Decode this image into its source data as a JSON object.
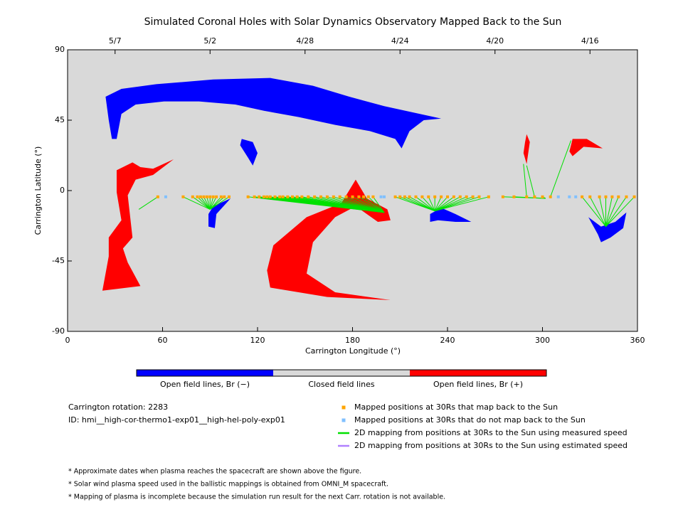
{
  "chart_data": {
    "type": "scatter",
    "title": "Simulated Coronal Holes with Solar Dynamics Observatory Mapped Back to the Sun",
    "x_label": "Carrington Longitude (°)",
    "y_label": "Carrington Latitude (°)",
    "xlim": [
      0,
      360
    ],
    "ylim": [
      -90,
      90
    ],
    "xticks": [
      0,
      60,
      120,
      180,
      240,
      300,
      360
    ],
    "yticks": [
      -90,
      -45,
      0,
      45,
      90
    ],
    "top_ticks": [
      {
        "value": 30,
        "label": "5/7"
      },
      {
        "value": 90,
        "label": "5/2"
      },
      {
        "value": 150,
        "label": "4/28"
      },
      {
        "value": 210,
        "label": "4/24"
      },
      {
        "value": 270,
        "label": "4/20"
      },
      {
        "value": 330,
        "label": "4/16"
      }
    ],
    "background": "#d9d9d9",
    "colorbar": [
      {
        "label": "Open field lines, Br (−)",
        "color": "#0000ff"
      },
      {
        "label": "Closed field lines",
        "color": "#d9d9d9"
      },
      {
        "label": "Open field lines, Br (+)",
        "color": "#ff0000"
      }
    ],
    "holes": [
      {
        "color": "#0000ff",
        "lon": [
          24,
          34,
          56,
          92,
          128,
          155,
          178,
          200,
          227,
          236,
          225,
          216,
          211,
          207,
          191,
          169,
          146,
          124,
          106,
          83,
          61,
          43,
          34,
          31,
          28,
          26
        ],
        "lat": [
          60,
          65,
          68,
          71,
          72,
          67,
          60,
          54,
          48,
          46,
          45,
          38,
          27,
          33,
          38,
          42,
          47,
          51,
          55,
          57,
          57,
          55,
          49,
          33,
          33,
          45
        ]
      },
      {
        "color": "#0000ff",
        "lon": [
          110,
          117,
          120,
          117,
          114,
          109
        ],
        "lat": [
          33,
          31,
          24,
          16,
          21,
          29
        ]
      },
      {
        "color": "#0000ff",
        "lon": [
          89,
          92,
          103,
          94,
          93,
          89
        ],
        "lat": [
          -15,
          -10,
          -5,
          -15,
          -24,
          -23
        ]
      },
      {
        "color": "#0000ff",
        "lon": [
          229,
          236,
          245,
          255,
          245,
          234,
          229
        ],
        "lat": [
          -15,
          -11,
          -15,
          -20,
          -20,
          -19,
          -20
        ]
      },
      {
        "color": "#0000ff",
        "lon": [
          329,
          337,
          346,
          353,
          351,
          343,
          337,
          335
        ],
        "lat": [
          -17,
          -23,
          -20,
          -14,
          -24,
          -30,
          -33,
          -28
        ]
      },
      {
        "color": "#ff0000",
        "lon": [
          31,
          41,
          46,
          54,
          67,
          54,
          43,
          38,
          41,
          35,
          38,
          46,
          22,
          26,
          26,
          34,
          31
        ],
        "lat": [
          13,
          18,
          15,
          14,
          20,
          10,
          7,
          -3,
          -30,
          -37,
          -46,
          -61,
          -64,
          -42,
          -30,
          -19,
          -1
        ]
      },
      {
        "color": "#ff0000",
        "lon": [
          128,
          126,
          130,
          151,
          173,
          182,
          189,
          202,
          204,
          196,
          182,
          169,
          155,
          151,
          169,
          204,
          164
        ],
        "lat": [
          -62,
          -51,
          -35,
          -17,
          -8,
          7,
          -5,
          -12,
          -19,
          -20,
          -10,
          -17,
          -33,
          -53,
          -65,
          -70,
          -68
        ]
      },
      {
        "color": "#ff0000",
        "lon": [
          290,
          292,
          290,
          288,
          289
        ],
        "lat": [
          36,
          31,
          17,
          24,
          31
        ]
      },
      {
        "color": "#ff0000",
        "lon": [
          319,
          328,
          338,
          326,
          319,
          317
        ],
        "lat": [
          33,
          33,
          27,
          28,
          22,
          25
        ]
      }
    ],
    "mapped": {
      "name": "Mapped positions at 30Rs that map back to the Sun",
      "color": "#ffa500",
      "x": [
        57,
        73,
        79,
        82,
        84,
        86,
        88,
        90,
        92,
        94,
        97,
        99,
        102,
        114,
        118,
        121,
        124,
        126,
        128,
        131,
        134,
        136,
        139,
        142,
        145,
        148,
        152,
        156,
        160,
        164,
        168,
        172,
        176,
        180,
        184,
        187,
        190,
        193,
        207,
        210,
        213,
        216,
        220,
        224,
        228,
        232,
        236,
        240,
        244,
        248,
        252,
        256,
        260,
        266,
        275,
        282,
        290,
        295,
        300,
        305,
        325,
        330,
        336,
        340,
        344,
        348,
        353,
        358
      ],
      "y": [
        -4,
        -4,
        -4,
        -4,
        -4,
        -4,
        -4,
        -4,
        -4,
        -4,
        -4,
        -4,
        -4,
        -4,
        -4,
        -4,
        -4,
        -4,
        -4,
        -4,
        -4,
        -4,
        -4,
        -4,
        -4,
        -4,
        -4,
        -4,
        -4,
        -4,
        -4,
        -4,
        -4,
        -4,
        -4,
        -4,
        -4,
        -4,
        -4,
        -4,
        -4,
        -4,
        -4,
        -4,
        -4,
        -4,
        -4,
        -4,
        -4,
        -4,
        -4,
        -4,
        -4,
        -4,
        -4,
        -4,
        -4,
        -4,
        -4,
        -4,
        -4,
        -4,
        -4,
        -4,
        -4,
        -4,
        -4,
        -4
      ]
    },
    "unmapped": {
      "name": "Mapped positions at 30Rs that do not map back to the Sun",
      "color": "#80c0ff",
      "x": [
        62,
        198,
        200,
        310,
        317,
        321
      ],
      "y": [
        -4,
        -4,
        -4,
        -4,
        -4,
        -4
      ]
    },
    "measured": {
      "name": "2D mapping from positions at 30Rs to the Sun using measured speed",
      "color": "#00e000",
      "foot_x": [
        45,
        90,
        90,
        90,
        90,
        90,
        90,
        90,
        90,
        90,
        90,
        90,
        90,
        200,
        200,
        200,
        200,
        200,
        200,
        200,
        200,
        200,
        200,
        200,
        200,
        200,
        200,
        200,
        200,
        200,
        200,
        200,
        200,
        200,
        200,
        200,
        200,
        200,
        232,
        232,
        232,
        232,
        232,
        232,
        232,
        232,
        232,
        232,
        232,
        232,
        232,
        232,
        232,
        232,
        302,
        302,
        288,
        290,
        302,
        318,
        340,
        340,
        340,
        340,
        340,
        340,
        340,
        340
      ],
      "foot_y": [
        -12,
        -12,
        -12,
        -12,
        -12,
        -12,
        -12,
        -12,
        -12,
        -12,
        -12,
        -12,
        -12,
        -14,
        -14,
        -14,
        -14,
        -14,
        -14,
        -14,
        -14,
        -14,
        -14,
        -14,
        -14,
        -14,
        -14,
        -14,
        -14,
        -14,
        -14,
        -14,
        -14,
        -14,
        -14,
        -14,
        -14,
        -14,
        -13,
        -13,
        -13,
        -13,
        -13,
        -13,
        -13,
        -13,
        -13,
        -13,
        -13,
        -13,
        -13,
        -13,
        -13,
        -13,
        -5,
        -5,
        17,
        16,
        -5,
        32,
        -23,
        -23,
        -23,
        -23,
        -23,
        -23,
        -23,
        -23
      ]
    },
    "estimated": {
      "name": "2D mapping from positions at 30Rs to the Sun using estimated speed",
      "color": "#b080ff"
    },
    "info": [
      "Carrington rotation: 2283",
      "ID: hmi__high-cor-thermo1-exp01__high-hel-poly-exp01"
    ],
    "notes": [
      "* Approximate dates when plasma reaches the spacecraft are shown above the figure.",
      "* Solar wind plasma speed used in the ballistic mappings is obtained from OMNI_M spacecraft.",
      "* Mapping of plasma is incomplete because the simulation run result for the next Carr. rotation is not available."
    ]
  }
}
